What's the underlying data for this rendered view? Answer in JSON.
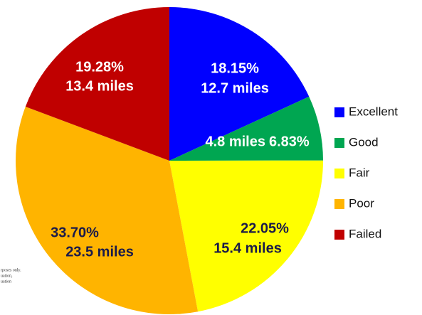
{
  "chart_data": {
    "type": "pie",
    "categories": [
      "Excellent",
      "Good",
      "Fair",
      "Poor",
      "Failed"
    ],
    "values": [
      18.15,
      6.83,
      22.05,
      33.7,
      19.28
    ],
    "value_labels": [
      "18.15%",
      "6.83%",
      "22.05%",
      "33.70%",
      "19.28%"
    ],
    "mile_labels": [
      "12.7 miles",
      "4.8 miles",
      "15.4 miles",
      "23.5 miles",
      "13.4 miles"
    ],
    "colors": [
      "#0000ff",
      "#00a651",
      "#ffff00",
      "#ffb400",
      "#c00000"
    ],
    "label_colors": [
      "#ffffff",
      "#ffffff",
      "#1a1a4a",
      "#1a1a4a",
      "#ffffff"
    ],
    "legend": "right",
    "footnote_lines": [
      "rposes only.",
      "uation,",
      "uation"
    ]
  }
}
